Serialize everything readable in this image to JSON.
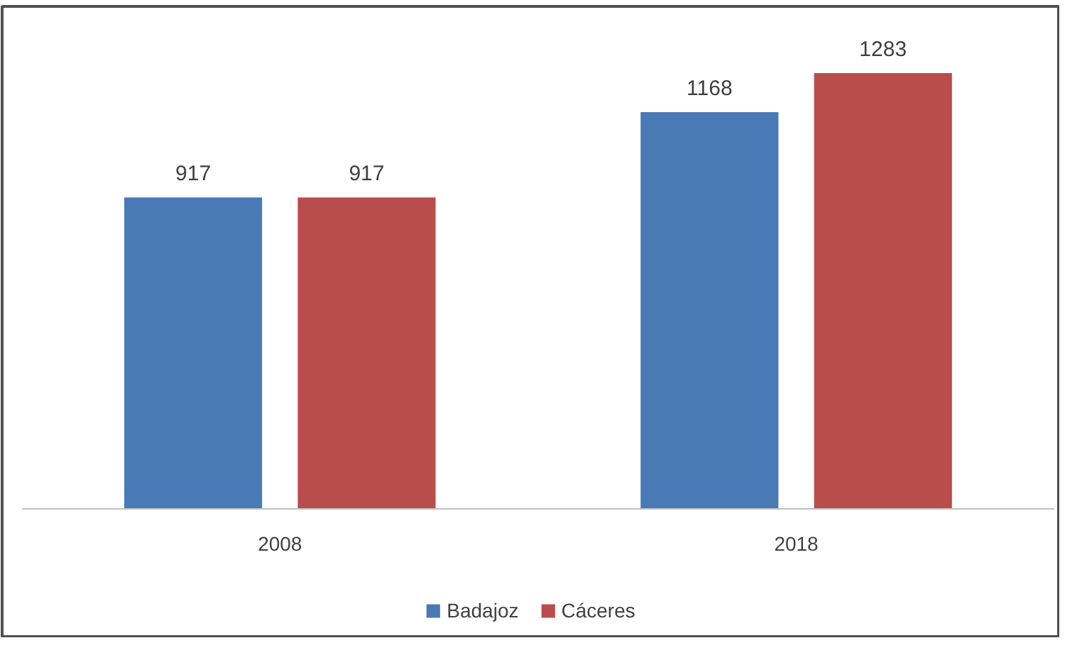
{
  "chart_data": {
    "type": "bar",
    "categories": [
      "2008",
      "2018"
    ],
    "series": [
      {
        "name": "Badajoz",
        "color": "#4a7ab5",
        "values": [
          917,
          1168
        ]
      },
      {
        "name": "Cáceres",
        "color": "#b94d4c",
        "values": [
          917,
          1283
        ]
      }
    ],
    "data_labels": true,
    "legend": "bottom",
    "grid": false
  }
}
